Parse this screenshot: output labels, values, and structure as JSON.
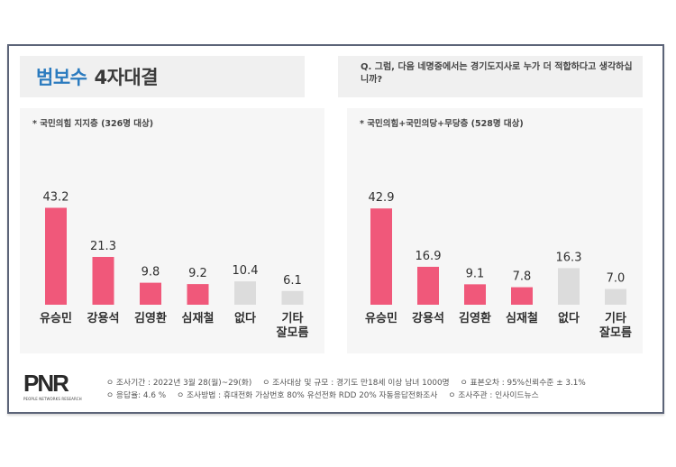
{
  "header": {
    "title_highlight": "범보수",
    "title_rest": "4자대결",
    "question": "Q. 그럼, 다음 네명중에서는 경기도지사로 누가 더 적합하다고 생각하십니까?"
  },
  "colors": {
    "candidate_bar": "#f0587a",
    "other_bar": "#dcdcdc",
    "title_blue": "#2b7bbf",
    "frame_border": "#5c6478"
  },
  "chart_data": [
    {
      "type": "bar",
      "title": "* 국민의힘 지지층 (326명 대상)",
      "categories": [
        "유승민",
        "강용석",
        "김영환",
        "심재철",
        "없다",
        "기타\n잘모름"
      ],
      "category_lines": [
        [
          "유승민"
        ],
        [
          "강용석"
        ],
        [
          "김영환"
        ],
        [
          "심재철"
        ],
        [
          "없다"
        ],
        [
          "기타",
          "잘모름"
        ]
      ],
      "values": [
        43.2,
        21.3,
        9.8,
        9.2,
        10.4,
        6.1
      ],
      "value_labels": [
        "43.2",
        "21.3",
        "9.8",
        "9.2",
        "10.4",
        "6.1"
      ],
      "bar_kinds": [
        "candidate",
        "candidate",
        "candidate",
        "candidate",
        "other",
        "other"
      ],
      "xlabel": "",
      "ylabel": "",
      "ylim": [
        0,
        45
      ],
      "grid": false,
      "legend": "none"
    },
    {
      "type": "bar",
      "title": "* 국민의힘+국민의당+무당층 (528명 대상)",
      "categories": [
        "유승민",
        "강용석",
        "김영환",
        "심재철",
        "없다",
        "기타\n잘모름"
      ],
      "category_lines": [
        [
          "유승민"
        ],
        [
          "강용석"
        ],
        [
          "김영환"
        ],
        [
          "심재철"
        ],
        [
          "없다"
        ],
        [
          "기타",
          "잘모름"
        ]
      ],
      "values": [
        42.9,
        16.9,
        9.1,
        7.8,
        16.3,
        7.0
      ],
      "value_labels": [
        "42.9",
        "16.9",
        "9.1",
        "7.8",
        "16.3",
        "7.0"
      ],
      "bar_kinds": [
        "candidate",
        "candidate",
        "candidate",
        "candidate",
        "other",
        "other"
      ],
      "xlabel": "",
      "ylabel": "",
      "ylim": [
        0,
        45
      ],
      "grid": false,
      "legend": "none"
    }
  ],
  "footer": {
    "logo": "PNR",
    "logo_subtitle": "PEOPLE NETWORKS RESEARCH",
    "line1": [
      "ㅇ 조사기간 : 2022년 3월 28(월)~29(화)",
      "ㅇ 조사대상 및 규모 : 경기도 만18세 이상 남녀 1000명",
      "ㅇ 표본오차 : 95%신뢰수준 ± 3.1%"
    ],
    "line2": [
      "ㅇ 응답율: 4.6 %",
      "ㅇ 조사방법 : 휴대전화 가상번호 80% 유선전화 RDD 20% 자동응답전화조사",
      "ㅇ 조사주관 : 인사이드뉴스"
    ]
  }
}
